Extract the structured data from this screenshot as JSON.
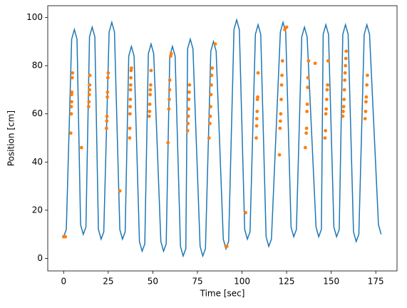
{
  "chart_data": {
    "type": "line",
    "xlabel": "Time [sec]",
    "ylabel": "Position [cm]",
    "xlim": [
      -8.9,
      186.9
    ],
    "ylim": [
      -5.2,
      104.9
    ],
    "xticks": [
      0,
      25,
      50,
      75,
      100,
      125,
      150,
      175
    ],
    "yticks": [
      0,
      20,
      40,
      60,
      80,
      100
    ],
    "series": [
      {
        "type": "line",
        "color": "#1f77b4",
        "x": [
          0,
          1.5,
          4.5,
          6,
          7.5,
          9.5,
          11,
          12.5,
          14.5,
          16,
          17.5,
          19.5,
          21,
          22.5,
          25.5,
          27,
          28.5,
          31.5,
          33,
          34.5,
          36.5,
          38,
          39.5,
          42.5,
          44,
          45.5,
          47.5,
          49,
          50.5,
          54.5,
          56,
          57.5,
          59.5,
          61,
          62.5,
          65.5,
          67,
          68.5,
          69.5,
          71,
          72.5,
          76.5,
          78,
          79.5,
          82.5,
          84,
          85.5,
          89.5,
          91,
          92.5,
          95.5,
          97,
          98.5,
          101.5,
          103,
          104.5,
          107.5,
          109,
          110.5,
          113.5,
          115,
          116.5,
          121.5,
          123,
          124.5,
          127.5,
          129,
          130.5,
          133.5,
          135,
          136.5,
          141.5,
          143,
          144.5,
          145.5,
          147,
          148.5,
          151.5,
          153,
          154.5,
          156.5,
          158,
          159.5,
          162.5,
          164,
          165.5,
          168.5,
          170,
          171.5,
          176.5,
          178
        ],
        "values": [
          9,
          12,
          91,
          95,
          91,
          14,
          10,
          13,
          92,
          96,
          92,
          12,
          8,
          11,
          94,
          98,
          94,
          12,
          8,
          11,
          84,
          88,
          84,
          7,
          3,
          6,
          85,
          89,
          85,
          7,
          3,
          6,
          84,
          88,
          84,
          5,
          1,
          4,
          87,
          91,
          87,
          5,
          1,
          4,
          86,
          90,
          86,
          8,
          4,
          7,
          95,
          99,
          95,
          12,
          8,
          11,
          93,
          97,
          93,
          9,
          5,
          8,
          94,
          98,
          94,
          13,
          9,
          12,
          92,
          96,
          92,
          13,
          9,
          12,
          93,
          97,
          93,
          13,
          9,
          12,
          93,
          97,
          93,
          11,
          7,
          10,
          93,
          97,
          93,
          14,
          10
        ]
      },
      {
        "type": "scatter",
        "color": "#ff7f0e",
        "x": [
          0,
          0.5,
          1,
          4,
          4.3,
          4.3,
          4.5,
          4.5,
          4.6,
          4.8,
          5,
          10,
          14,
          14.2,
          14.4,
          14.5,
          14.6,
          14.7,
          24,
          24.2,
          24.3,
          24.5,
          24.6,
          24.8,
          25,
          31.5,
          37,
          37.1,
          37.2,
          37.3,
          37.4,
          37.5,
          37.6,
          37.7,
          37.8,
          38,
          48,
          48.2,
          48.3,
          48.5,
          48.6,
          48.8,
          49,
          58.5,
          59,
          59.2,
          59.4,
          59.5,
          60,
          60.3,
          69.5,
          69.7,
          69.9,
          70,
          70.2,
          70.4,
          70.6,
          81.5,
          82,
          82.2,
          82.4,
          82.6,
          82.8,
          83,
          83.3,
          85,
          91,
          91.5,
          102,
          108,
          108.2,
          108.3,
          108.5,
          108.6,
          108.8,
          109,
          121,
          121.3,
          121.5,
          121.7,
          122,
          122.2,
          122.4,
          122.7,
          124,
          125,
          135.5,
          136,
          136.2,
          136.4,
          136.6,
          136.8,
          137,
          137.3,
          141,
          146.5,
          146.8,
          147,
          147.2,
          147.5,
          147.7,
          148,
          148.3,
          156.5,
          156.7,
          157,
          157.2,
          157.4,
          157.6,
          157.8,
          158,
          158.2,
          158.4,
          169,
          169.3,
          169.5,
          169.7,
          170,
          170.3
        ],
        "values": [
          9,
          9,
          9,
          52,
          60,
          63,
          65,
          68,
          69,
          75,
          77,
          46,
          63,
          65,
          68,
          70,
          72,
          76,
          54,
          57,
          59,
          67,
          69,
          75,
          77,
          28,
          50,
          54,
          60,
          63,
          66,
          70,
          72,
          75,
          78,
          79,
          59,
          61,
          64,
          68,
          70,
          72,
          78,
          48,
          62,
          66,
          70,
          74,
          84,
          85,
          53,
          56,
          59,
          62,
          66,
          69,
          72,
          50,
          56,
          59,
          63,
          68,
          72,
          76,
          79,
          89,
          5,
          5,
          19,
          50,
          55,
          58,
          61,
          66,
          67,
          77,
          43,
          54,
          57,
          60,
          66,
          72,
          76,
          82,
          95,
          96,
          46,
          52,
          54,
          61,
          64,
          71,
          75,
          82,
          81,
          50,
          53,
          60,
          62,
          66,
          70,
          72,
          82,
          59,
          61,
          63,
          66,
          70,
          74,
          77,
          80,
          83,
          86,
          58,
          61,
          65,
          67,
          72,
          76
        ]
      }
    ]
  }
}
